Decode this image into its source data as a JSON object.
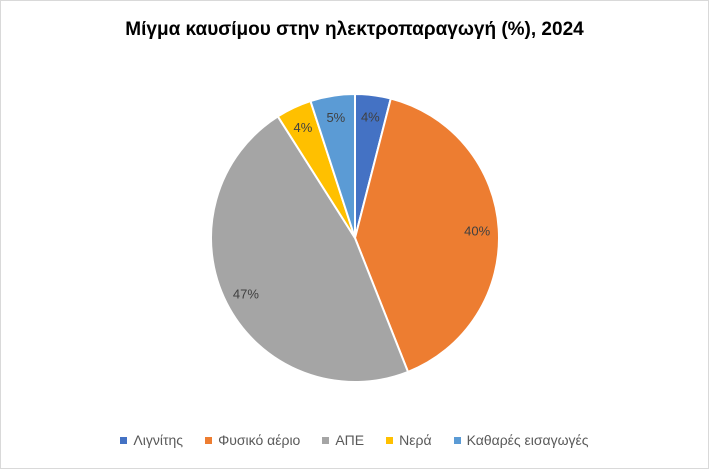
{
  "chart_data": {
    "type": "pie",
    "title": "Μίγμα καυσίμου στην ηλεκτροπαραγωγή (%), 2024",
    "categories": [
      "Λιγνίτης",
      "Φυσικό αέριο",
      "ΑΠΕ",
      "Νερά",
      "Καθαρές εισαγωγές"
    ],
    "values": [
      4,
      40,
      47,
      4,
      5
    ],
    "data_labels": [
      "4%",
      "40%",
      "47%",
      "4%",
      "5%"
    ],
    "colors": [
      "#4472c4",
      "#ed7d31",
      "#a5a5a5",
      "#ffc000",
      "#5b9bd5"
    ],
    "legend_position": "bottom",
    "start_angle": "top, clockwise"
  }
}
